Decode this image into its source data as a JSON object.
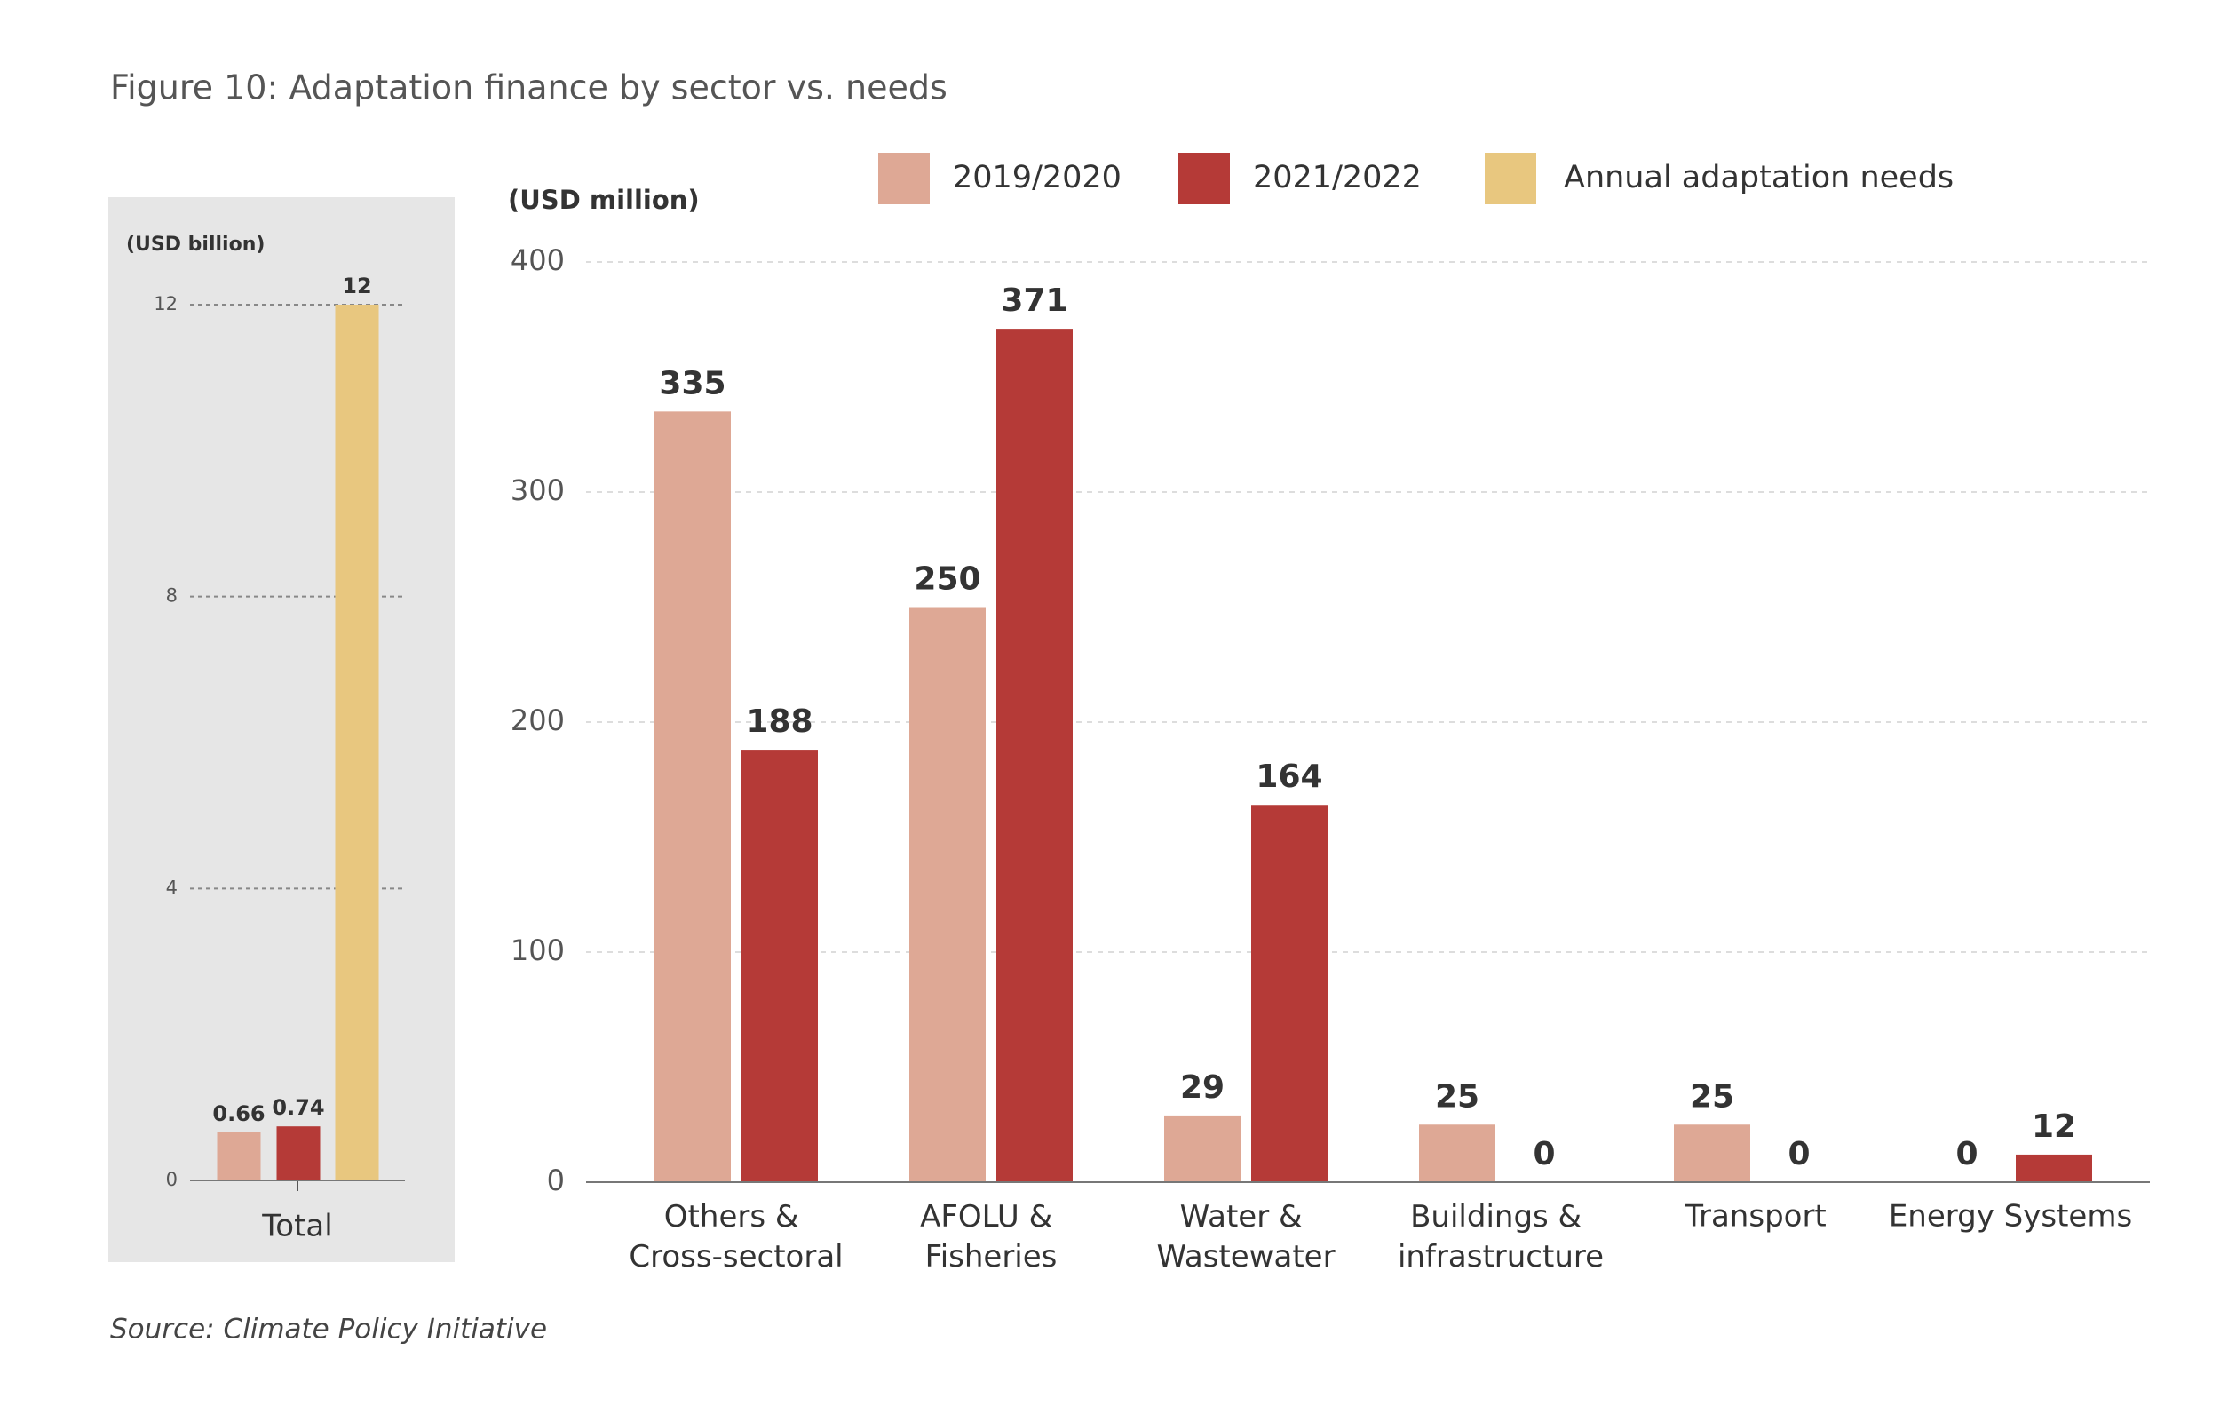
{
  "title": "Figure 10: Adaptation finance by sector vs. needs",
  "source": "Source: Climate Policy Initiative",
  "chart_data": [
    {
      "type": "bar",
      "y_label": "(USD billion)",
      "categories": [
        "Total"
      ],
      "series": [
        {
          "color": "#dea895",
          "values": [
            0.66
          ]
        },
        {
          "color": "#b53a37",
          "values": [
            0.74
          ]
        },
        {
          "name": "Annual adaptation needs",
          "color": "#e8c77f",
          "values": [
            12
          ]
        }
      ],
      "ylim": [
        0,
        12
      ],
      "yticks": [
        0,
        4,
        8,
        12
      ],
      "grid": true
    },
    {
      "type": "bar",
      "y_label": "(USD million)",
      "categories": [
        "Others & Cross-sectoral",
        "AFOLU & Fisheries",
        "Water & Wastewater",
        "Buildings & infrastructure",
        "Transport",
        "Energy Systems"
      ],
      "series": [
        {
          "name": "2019/2020",
          "color": "#dea895",
          "values": [
            335,
            250,
            29,
            25,
            25,
            0
          ]
        },
        {
          "name": "2021/2022",
          "color": "#b53a37",
          "values": [
            188,
            371,
            164,
            0,
            0,
            12
          ]
        }
      ],
      "ylim": [
        0,
        400
      ],
      "yticks": [
        0,
        100,
        200,
        300,
        400
      ],
      "grid": true
    }
  ]
}
